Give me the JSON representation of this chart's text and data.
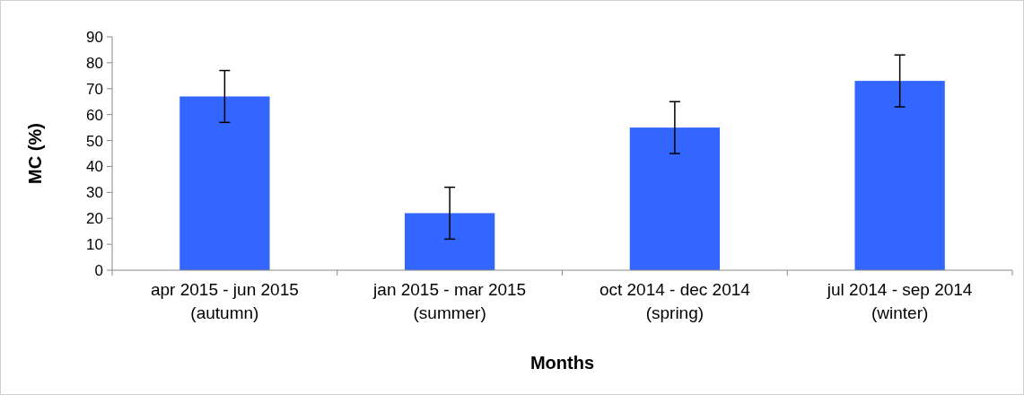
{
  "chart_data": {
    "type": "bar",
    "xlabel": "Months",
    "ylabel": "MC (%)",
    "categories": [
      "apr 2015 - jun 2015\n(autumn)",
      "jan 2015 - mar 2015\n(summer)",
      "oct 2014 - dec 2014\n(spring)",
      "jul 2014 - sep 2014\n(winter)"
    ],
    "values": [
      67,
      22,
      55,
      73
    ],
    "errors": [
      10,
      10,
      10,
      10
    ],
    "color": "#3366ff",
    "ylim": [
      0,
      90
    ],
    "yticks": [
      0,
      10,
      20,
      30,
      40,
      50,
      60,
      70,
      80,
      90
    ],
    "grid": false
  }
}
